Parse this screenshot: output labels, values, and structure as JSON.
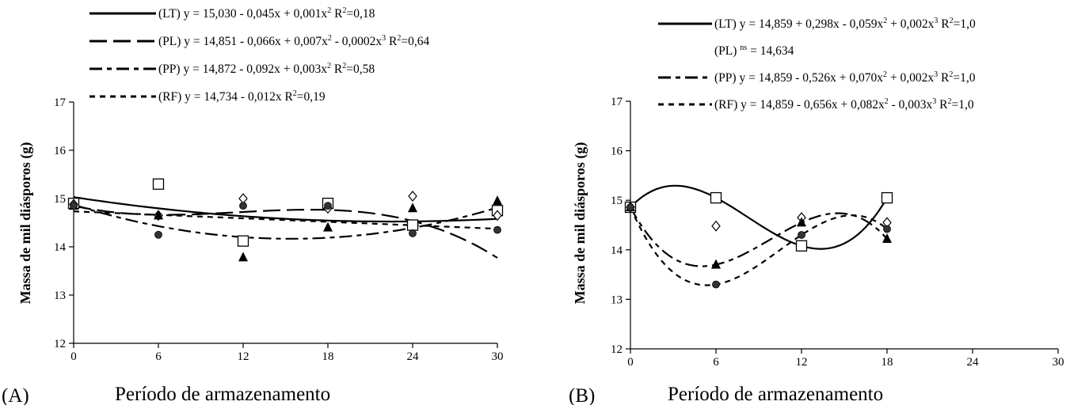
{
  "chart_data": [
    {
      "type": "scatter",
      "panel_label": "(A)",
      "xlabel": "Período de armazenamento",
      "ylabel": "Massa de mil diásporos (g)",
      "xlim": [
        0,
        30
      ],
      "ylim": [
        12,
        17
      ],
      "xticks": [
        0,
        6,
        12,
        18,
        24,
        30
      ],
      "yticks": [
        12,
        13,
        14,
        15,
        16,
        17
      ],
      "grid": false,
      "legend_position": "top",
      "series": [
        {
          "name": "(LT)",
          "marker": "open-square",
          "line_style": "solid",
          "equation": [
            "y = 15,030 - 0,045x + 0,001x",
            "2",
            " R",
            "2",
            "=0,18"
          ],
          "coefficients": [
            15.03,
            -0.045,
            0.001
          ],
          "x": [
            0,
            6,
            12,
            18,
            24,
            30
          ],
          "y": [
            14.9,
            15.3,
            14.12,
            14.9,
            14.45,
            14.75
          ]
        },
        {
          "name": "(PL)",
          "marker": "open-diamond",
          "line_style": "long-dash",
          "equation": [
            "y = 14,851 - 0,066x + 0,007x",
            "2",
            " - 0,0002x",
            "3",
            " R",
            "2",
            "=0,64"
          ],
          "coefficients": [
            14.851,
            -0.066,
            0.007,
            -0.0002
          ],
          "x": [
            0,
            6,
            12,
            18,
            24,
            30
          ],
          "y": [
            14.88,
            14.65,
            15.0,
            14.8,
            15.05,
            14.65
          ]
        },
        {
          "name": "(PP)",
          "marker": "filled-triangle",
          "line_style": "dash-dot",
          "equation": [
            "y = 14,872 - 0,092x + 0,003x",
            "2",
            " R",
            "2",
            "=0,58"
          ],
          "coefficients": [
            14.872,
            -0.092,
            0.003
          ],
          "x": [
            0,
            6,
            12,
            18,
            24,
            30
          ],
          "y": [
            14.85,
            14.65,
            13.78,
            14.4,
            14.8,
            14.95
          ]
        },
        {
          "name": "(RF)",
          "marker": "filled-circle",
          "line_style": "short-dash",
          "equation": [
            "y = 14,734 - 0,012x R",
            "2",
            "=0,19"
          ],
          "coefficients": [
            14.734,
            -0.012
          ],
          "x": [
            0,
            6,
            12,
            18,
            24,
            30
          ],
          "y": [
            14.85,
            14.25,
            14.85,
            14.85,
            14.28,
            14.35
          ]
        }
      ]
    },
    {
      "type": "scatter",
      "panel_label": "(B)",
      "xlabel": "Período de armazenamento",
      "ylabel": "Massa de mil diásporos (g)",
      "xlim": [
        0,
        30
      ],
      "ylim": [
        12,
        17
      ],
      "xticks": [
        0,
        6,
        12,
        18,
        24,
        30
      ],
      "yticks": [
        12,
        13,
        14,
        15,
        16,
        17
      ],
      "grid": false,
      "legend_position": "top",
      "series": [
        {
          "name": "(LT)",
          "marker": "open-square",
          "line_style": "solid",
          "equation": [
            "y = 14,859 + 0,298x - 0,059x",
            "2",
            " + 0,002x",
            "3",
            " R",
            "2",
            "=1,0"
          ],
          "x": [
            0,
            6,
            12,
            18
          ],
          "y": [
            14.86,
            15.05,
            14.08,
            15.05
          ]
        },
        {
          "name": "(PL)",
          "marker": "open-diamond",
          "line_style": "none",
          "equation": [
            "ns",
            " = 14,634"
          ],
          "x": [
            0,
            6,
            12,
            18
          ],
          "y": [
            14.86,
            14.48,
            14.65,
            14.55
          ]
        },
        {
          "name": "(PP)",
          "marker": "filled-triangle",
          "line_style": "dash-dot",
          "equation": [
            "y = 14,859 - 0,526x + 0,070x",
            "2",
            " + 0,002x",
            "3",
            " R",
            "2",
            "=1,0"
          ],
          "x": [
            0,
            6,
            12,
            18
          ],
          "y": [
            14.86,
            13.7,
            14.55,
            14.22
          ]
        },
        {
          "name": "(RF)",
          "marker": "filled-circle",
          "line_style": "short-dash",
          "equation": [
            "y = 14,859 - 0,656x + 0,082x",
            "2",
            " - 0,003x",
            "3",
            " R",
            "2",
            "=1,0"
          ],
          "x": [
            0,
            6,
            12,
            18
          ],
          "y": [
            14.86,
            13.3,
            14.3,
            14.42
          ]
        }
      ]
    }
  ]
}
